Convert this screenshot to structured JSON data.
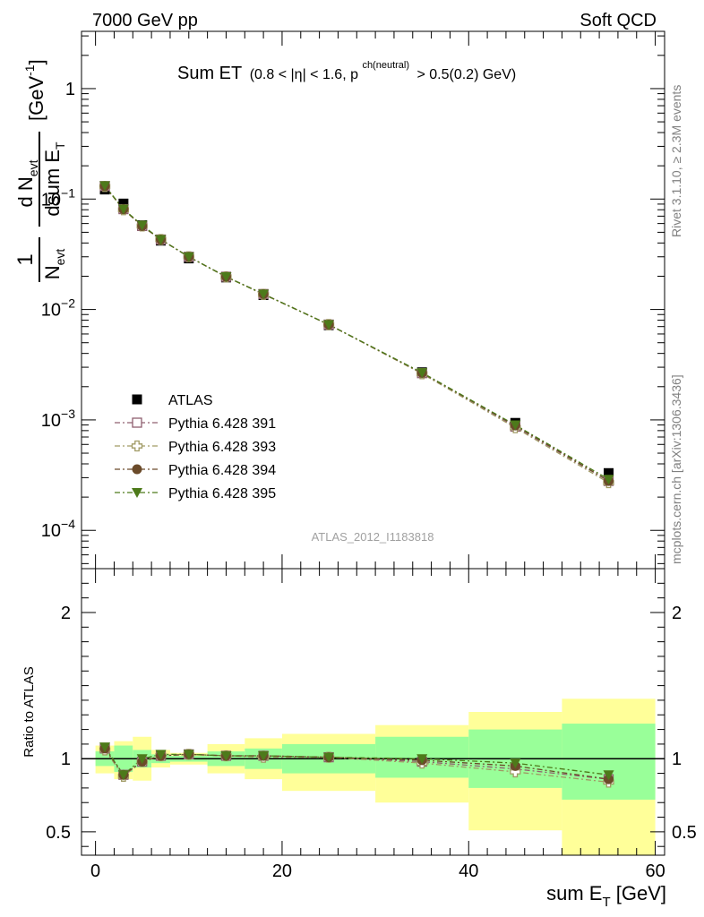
{
  "header": {
    "left": "7000 GeV pp",
    "right": "Soft QCD"
  },
  "side_labels": {
    "rivet": "Rivet 3.1.10, ≥ 2.3M events",
    "mcplots": "mcplots.cern.ch [arXiv:1306.3436]"
  },
  "chart_data": [
    {
      "type": "scatter",
      "title_main": "Sum ET",
      "title_cuts_a": "(0.8 < |η| < 1.6, p",
      "title_sup": "ch(neutral)",
      "title_cuts_b": "> 0.5(0.2) GeV)",
      "ylabel": "1/N_evt dN_evt/dsum E_T [GeV^-1]",
      "yscale": "log",
      "ylim": [
        4.5e-05,
        3.3
      ],
      "xlim": [
        -1.5,
        61
      ],
      "y_ticks": [
        {
          "value": 1,
          "label": "1"
        },
        {
          "value": 0.1,
          "label": "10^-1"
        },
        {
          "value": 0.01,
          "label": "10^-2"
        },
        {
          "value": 0.001,
          "label": "10^-3"
        },
        {
          "value": 0.0001,
          "label": "10^-4"
        }
      ],
      "watermark": "ATLAS_2012_I1183818",
      "legend_position": "lower-left",
      "x": [
        1,
        3,
        5,
        7,
        10,
        14,
        18,
        25,
        35,
        45,
        55
      ],
      "series": [
        {
          "name": "ATLAS",
          "color": "#000000",
          "marker": "square-filled",
          "values": [
            0.122,
            0.091,
            0.058,
            0.042,
            0.029,
            0.0195,
            0.0135,
            0.0072,
            0.0027,
            0.00094,
            0.00033
          ]
        },
        {
          "name": "Pythia 6.428 391",
          "color": "#8f5f6f",
          "marker": "square-open",
          "values": [
            0.131,
            0.081,
            0.057,
            0.043,
            0.03,
            0.0198,
            0.0138,
            0.0073,
            0.00265,
            0.00087,
            0.00028
          ]
        },
        {
          "name": "Pythia 6.428 393",
          "color": "#a09a64",
          "marker": "cross-open",
          "values": [
            0.13,
            0.08,
            0.057,
            0.043,
            0.03,
            0.0197,
            0.0137,
            0.0073,
            0.00262,
            0.00085,
            0.00027
          ]
        },
        {
          "name": "Pythia 6.428 394",
          "color": "#6b4b2a",
          "marker": "circle-filled",
          "values": [
            0.131,
            0.081,
            0.057,
            0.043,
            0.03,
            0.0198,
            0.0138,
            0.0073,
            0.00266,
            0.00089,
            0.00028
          ]
        },
        {
          "name": "Pythia 6.428 395",
          "color": "#4d7a1a",
          "marker": "triangle-down-filled",
          "values": [
            0.132,
            0.081,
            0.058,
            0.043,
            0.03,
            0.0198,
            0.0138,
            0.0073,
            0.00268,
            0.0009,
            0.00029
          ]
        }
      ]
    },
    {
      "type": "scatter",
      "ylabel": "Ratio to ATLAS",
      "xlabel": "sum E_T [GeV]",
      "ylim": [
        0.34,
        2.3
      ],
      "xlim": [
        -1.5,
        61
      ],
      "y_ticks": [
        {
          "value": 0.5,
          "label": "0.5"
        },
        {
          "value": 1,
          "label": "1"
        },
        {
          "value": 2,
          "label": "2"
        }
      ],
      "x_ticks": [
        {
          "value": 0,
          "label": "0"
        },
        {
          "value": 20,
          "label": "20"
        },
        {
          "value": 40,
          "label": "40"
        },
        {
          "value": 60,
          "label": "60"
        }
      ],
      "reference_line": 1,
      "uncertainty_bands": {
        "bins": [
          [
            0,
            2
          ],
          [
            2,
            4
          ],
          [
            4,
            6
          ],
          [
            6,
            8
          ],
          [
            8,
            12
          ],
          [
            12,
            16
          ],
          [
            16,
            20
          ],
          [
            20,
            30
          ],
          [
            30,
            40
          ],
          [
            40,
            50
          ],
          [
            50,
            60
          ]
        ],
        "stat_band": [
          [
            0.95,
            1.05
          ],
          [
            0.91,
            1.09
          ],
          [
            0.94,
            1.06
          ],
          [
            0.97,
            1.03
          ],
          [
            0.98,
            1.02
          ],
          [
            0.95,
            1.05
          ],
          [
            0.93,
            1.07
          ],
          [
            0.9,
            1.1
          ],
          [
            0.87,
            1.15
          ],
          [
            0.8,
            1.2
          ],
          [
            0.72,
            1.24
          ]
        ],
        "total_band": [
          [
            0.9,
            1.09
          ],
          [
            0.86,
            1.12
          ],
          [
            0.85,
            1.15
          ],
          [
            0.94,
            1.06
          ],
          [
            0.96,
            1.04
          ],
          [
            0.9,
            1.1
          ],
          [
            0.86,
            1.14
          ],
          [
            0.78,
            1.17
          ],
          [
            0.7,
            1.23
          ],
          [
            0.51,
            1.32
          ],
          [
            0.34,
            1.41
          ]
        ]
      },
      "x": [
        1,
        3,
        5,
        7,
        10,
        14,
        18,
        25,
        35,
        45,
        55
      ],
      "series": [
        {
          "name": "Pythia 6.428 391",
          "color": "#8f5f6f",
          "marker": "square-open",
          "values": [
            1.07,
            0.89,
            0.98,
            1.02,
            1.03,
            1.02,
            1.02,
            1.01,
            0.98,
            0.93,
            0.86
          ]
        },
        {
          "name": "Pythia 6.428 393",
          "color": "#a09a64",
          "marker": "cross-open",
          "values": [
            1.06,
            0.88,
            0.98,
            1.02,
            1.03,
            1.02,
            1.01,
            1.01,
            0.97,
            0.91,
            0.84
          ]
        },
        {
          "name": "Pythia 6.428 394",
          "color": "#6b4b2a",
          "marker": "circle-filled",
          "values": [
            1.07,
            0.89,
            0.98,
            1.02,
            1.03,
            1.02,
            1.02,
            1.01,
            0.99,
            0.95,
            0.86
          ]
        },
        {
          "name": "Pythia 6.428 395",
          "color": "#4d7a1a",
          "marker": "triangle-down-filled",
          "values": [
            1.08,
            0.89,
            1.0,
            1.03,
            1.03,
            1.02,
            1.02,
            1.01,
            1.0,
            0.97,
            0.89
          ]
        }
      ],
      "band_colors": {
        "stat": "#99ff99",
        "total": "#ffff99"
      }
    }
  ]
}
